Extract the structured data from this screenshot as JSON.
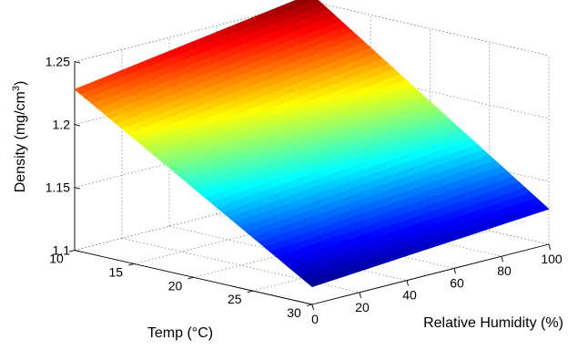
{
  "chart_data": {
    "type": "surface",
    "title": "",
    "xlabel": "Relative Humidity (%)",
    "ylabel": "Temp (°C)",
    "zlabel": "Density (mg/cm³)",
    "zlabel_parts": {
      "base": "Density (mg/cm",
      "sup": "3",
      "close": ")"
    },
    "xlim": [
      0,
      100
    ],
    "ylim": [
      10,
      30
    ],
    "zlim": [
      1.1,
      1.25
    ],
    "xticks": [
      "0",
      "20",
      "40",
      "60",
      "80",
      "100"
    ],
    "yticks": [
      "10",
      "15",
      "20",
      "25",
      "30"
    ],
    "zticks": [
      "1.1",
      "1.15",
      "1.2",
      "1.25"
    ],
    "grid": true,
    "colormap": "jet",
    "colormap_stops": [
      "#00008f",
      "#0000ff",
      "#00ffff",
      "#ffff00",
      "#ff0000",
      "#800000"
    ],
    "x": [
      0,
      100
    ],
    "y": [
      10,
      30
    ],
    "z": [
      [
        1.228,
        1.256
      ],
      [
        1.114,
        1.128
      ]
    ]
  }
}
